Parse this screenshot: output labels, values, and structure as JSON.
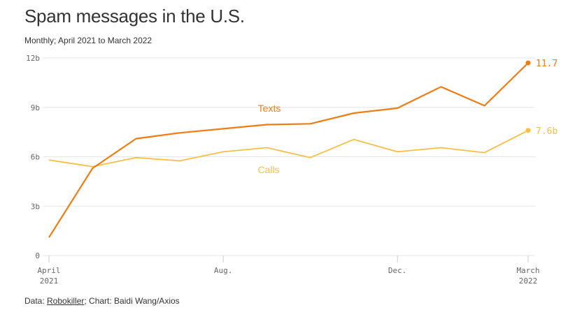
{
  "header": {
    "title": "Spam messages in the U.S.",
    "subtitle": "Monthly; April 2021 to March 2022"
  },
  "footer": {
    "prefix": "Data: ",
    "link": "Robokiller",
    "suffix": "; Chart: Baidi Wang/Axios"
  },
  "colors": {
    "texts": "#f07c12",
    "calls": "#f9bf45",
    "grid": "#e6e6e6",
    "axis_text": "#666666"
  },
  "chart_data": {
    "type": "line",
    "title": "Spam messages in the U.S.",
    "subtitle": "Monthly; April 2021 to March 2022",
    "x": [
      "Apr 2021",
      "May 2021",
      "Jun 2021",
      "Jul 2021",
      "Aug 2021",
      "Sep 2021",
      "Oct 2021",
      "Nov 2021",
      "Dec 2021",
      "Jan 2022",
      "Feb 2022",
      "Mar 2022"
    ],
    "x_tick_labels": [
      {
        "index": 0,
        "line1": "April",
        "line2": "2021"
      },
      {
        "index": 4,
        "line1": "Aug.",
        "line2": ""
      },
      {
        "index": 8,
        "line1": "Dec.",
        "line2": ""
      },
      {
        "index": 11,
        "line1": "March",
        "line2": "2022"
      }
    ],
    "y_ticks": [
      {
        "value": 0,
        "label": "0"
      },
      {
        "value": 3,
        "label": "3b"
      },
      {
        "value": 6,
        "label": "6b"
      },
      {
        "value": 9,
        "label": "9b"
      },
      {
        "value": 12,
        "label": "12b"
      }
    ],
    "ylim": [
      0,
      12
    ],
    "grid": true,
    "series": [
      {
        "name": "Texts",
        "color": "#f07c12",
        "values": [
          1.1,
          5.3,
          7.1,
          7.45,
          7.7,
          7.95,
          8.0,
          8.65,
          8.95,
          10.25,
          9.1,
          11.7
        ],
        "end_label": "11.7"
      },
      {
        "name": "Calls",
        "color": "#f9bf45",
        "values": [
          5.8,
          5.4,
          5.95,
          5.75,
          6.3,
          6.55,
          5.95,
          7.05,
          6.3,
          6.55,
          6.25,
          7.6
        ],
        "end_label": "7.6b"
      }
    ]
  }
}
